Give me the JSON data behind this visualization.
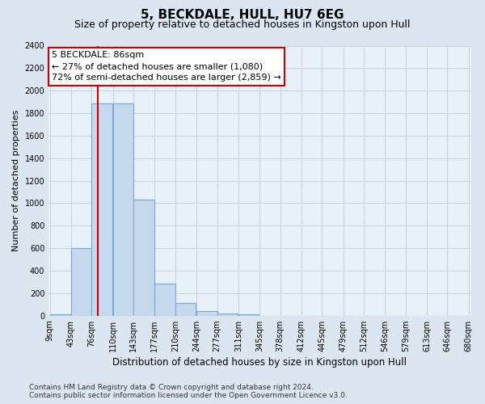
{
  "title": "5, BECKDALE, HULL, HU7 6EG",
  "subtitle": "Size of property relative to detached houses in Kingston upon Hull",
  "xlabel": "Distribution of detached houses by size in Kingston upon Hull",
  "ylabel": "Number of detached properties",
  "footer": "Contains HM Land Registry data © Crown copyright and database right 2024.\nContains public sector information licensed under the Open Government Licence v3.0.",
  "bins_left": [
    9,
    43,
    76,
    110,
    143,
    177,
    210,
    244,
    277,
    311,
    345,
    378,
    412,
    445,
    479,
    512,
    546,
    579,
    613,
    646
  ],
  "bar_values": [
    15,
    600,
    1890,
    1890,
    1030,
    285,
    110,
    38,
    20,
    15,
    0,
    0,
    0,
    0,
    0,
    0,
    0,
    0,
    0,
    0
  ],
  "bin_width": 33,
  "x_tick_vals": [
    9,
    43,
    76,
    110,
    143,
    177,
    210,
    244,
    277,
    311,
    345,
    378,
    412,
    445,
    479,
    512,
    546,
    579,
    613,
    646,
    680
  ],
  "x_tick_labels": [
    "9sqm",
    "43sqm",
    "76sqm",
    "110sqm",
    "143sqm",
    "177sqm",
    "210sqm",
    "244sqm",
    "277sqm",
    "311sqm",
    "345sqm",
    "378sqm",
    "412sqm",
    "445sqm",
    "479sqm",
    "512sqm",
    "546sqm",
    "579sqm",
    "613sqm",
    "646sqm",
    "680sqm"
  ],
  "ylim": [
    0,
    2400
  ],
  "yticks": [
    0,
    200,
    400,
    600,
    800,
    1000,
    1200,
    1400,
    1600,
    1800,
    2000,
    2200,
    2400
  ],
  "bar_fill": "#c5d8ed",
  "bar_edge": "#7aaad0",
  "vline_x": 86,
  "vline_color": "#cc0000",
  "annot_text": "5 BECKDALE: 86sqm\n← 27% of detached houses are smaller (1,080)\n72% of semi-detached houses are larger (2,859) →",
  "annot_box_fc": "#ffffff",
  "annot_box_ec": "#cc0000",
  "fig_bg": "#dce6f0",
  "ax_bg": "#e8f0f8",
  "grid_color": "#c8d4e0",
  "title_fs": 11,
  "subtitle_fs": 9,
  "ylabel_fs": 8,
  "xlabel_fs": 8.5,
  "tick_fs": 7,
  "annot_fs": 8,
  "footer_fs": 6.5
}
